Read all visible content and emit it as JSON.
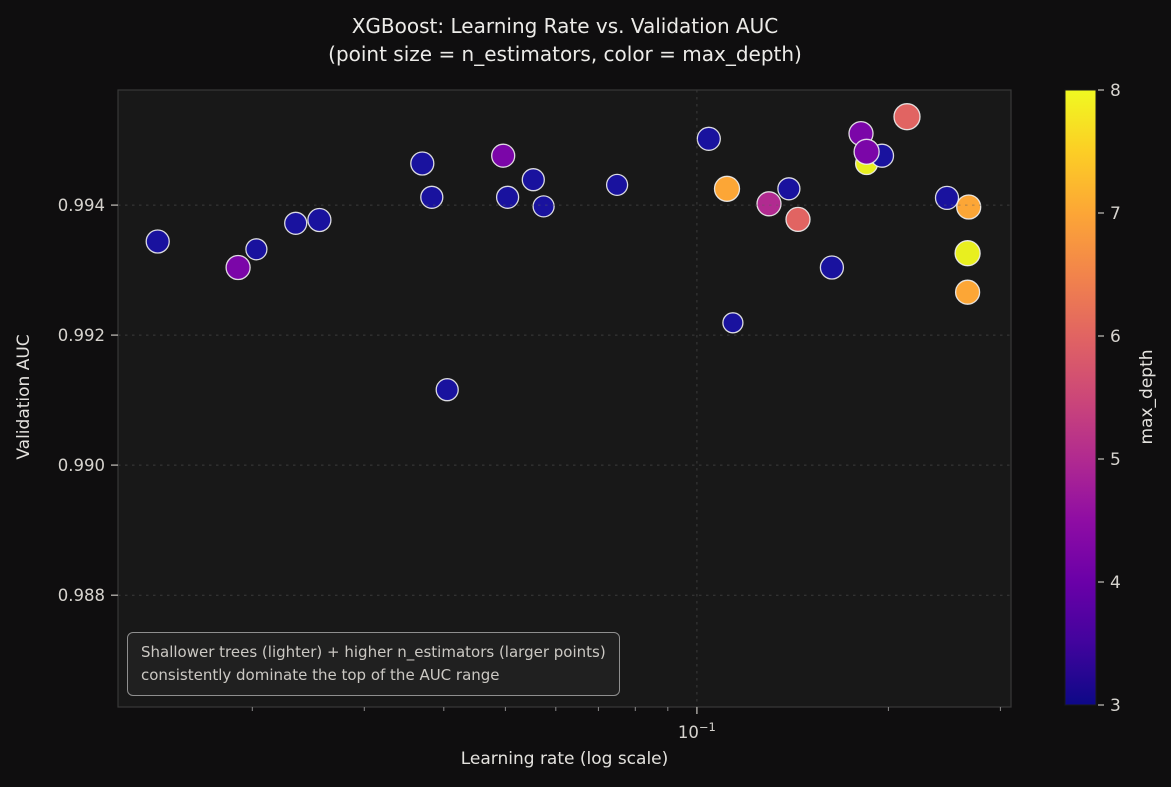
{
  "title": {
    "line1": "XGBoost: Learning Rate vs. Validation AUC",
    "line2": "(point size = n_estimators, color = max_depth)"
  },
  "colors": {
    "page_bg": "#0f0e0f",
    "plot_bg": "#181818",
    "grid": "#5e5e5e",
    "spine": "#383838",
    "title_text": "#ecebe8",
    "tick_text": "#d6d3ce",
    "minor_tick": "#8a8a8a",
    "major_tick": "#b8b5b0",
    "point_edge": "#f0f0f0",
    "annotation_text": "#cbc8c3",
    "annotation_border": "#8f8f8f"
  },
  "chart_data": {
    "type": "scatter",
    "title": "XGBoost: Learning Rate vs. Validation AUC",
    "subtitle": "(point size = n_estimators, color = max_depth)",
    "xlabel": "Learning rate (log scale)",
    "ylabel": "Validation AUC",
    "x_scale": "log",
    "grid": "dashed, y-major and x-major only",
    "legend_position": "colorbar-right",
    "xlim": [
      0.0123,
      0.3117
    ],
    "ylim": [
      0.98628,
      0.99577
    ],
    "x_ticks": [
      {
        "value": 0.1,
        "base": "10",
        "exp": "−1"
      }
    ],
    "x_minor_ticks": [
      0.02,
      0.03,
      0.04,
      0.05,
      0.06,
      0.07,
      0.08,
      0.09,
      0.2,
      0.3
    ],
    "y_ticks": [
      {
        "value": 0.988,
        "label": "0.988"
      },
      {
        "value": 0.99,
        "label": "0.990"
      },
      {
        "value": 0.992,
        "label": "0.992"
      },
      {
        "value": 0.994,
        "label": "0.994"
      }
    ],
    "colorbar": {
      "label": "max_depth",
      "min": 3,
      "max": 8,
      "ticks": [
        3,
        4,
        5,
        6,
        7,
        8
      ],
      "colormap": "plasma",
      "stops": [
        [
          0,
          "#0d0887"
        ],
        [
          0.1,
          "#41049d"
        ],
        [
          0.2,
          "#6a00a8"
        ],
        [
          0.3,
          "#8f0da4"
        ],
        [
          0.4,
          "#b12a90"
        ],
        [
          0.5,
          "#cc4778"
        ],
        [
          0.6,
          "#e16462"
        ],
        [
          0.7,
          "#f2844b"
        ],
        [
          0.8,
          "#fca636"
        ],
        [
          0.9,
          "#fcce25"
        ],
        [
          1,
          "#f0f921"
        ]
      ]
    },
    "depth_colors": {
      "3": "#19129e",
      "4": "#7b06a8",
      "5": "#b12a90",
      "6": "#e16462",
      "7": "#fca636",
      "8": "#e8ef1f"
    },
    "annotation": {
      "line1": "Shallower trees (lighter) + higher n_estimators (larger points)",
      "line2": "consistently dominate the top of the AUC range"
    },
    "size_encoding": "n_estimators (larger points = more estimators); r is marker radius in px read from the image",
    "points": [
      {
        "lr": 0.0142,
        "auc": 0.99344,
        "max_depth": 3,
        "r": 11.5
      },
      {
        "lr": 0.019,
        "auc": 0.99304,
        "max_depth": 4,
        "r": 12
      },
      {
        "lr": 0.0203,
        "auc": 0.99332,
        "max_depth": 3,
        "r": 10.5
      },
      {
        "lr": 0.0234,
        "auc": 0.99372,
        "max_depth": 3,
        "r": 11
      },
      {
        "lr": 0.0255,
        "auc": 0.99377,
        "max_depth": 3,
        "r": 11.5
      },
      {
        "lr": 0.037,
        "auc": 0.99464,
        "max_depth": 3,
        "r": 11.5
      },
      {
        "lr": 0.0383,
        "auc": 0.99412,
        "max_depth": 3,
        "r": 11
      },
      {
        "lr": 0.0405,
        "auc": 0.99116,
        "max_depth": 3,
        "r": 11
      },
      {
        "lr": 0.0496,
        "auc": 0.99476,
        "max_depth": 4,
        "r": 11.5
      },
      {
        "lr": 0.0504,
        "auc": 0.99412,
        "max_depth": 3,
        "r": 11
      },
      {
        "lr": 0.0553,
        "auc": 0.99439,
        "max_depth": 3,
        "r": 11
      },
      {
        "lr": 0.0574,
        "auc": 0.99398,
        "max_depth": 3,
        "r": 10.5
      },
      {
        "lr": 0.0749,
        "auc": 0.99431,
        "max_depth": 3,
        "r": 10.5
      },
      {
        "lr": 0.1044,
        "auc": 0.99502,
        "max_depth": 3,
        "r": 11.5
      },
      {
        "lr": 0.1139,
        "auc": 0.99219,
        "max_depth": 3,
        "r": 10
      },
      {
        "lr": 0.1115,
        "auc": 0.99425,
        "max_depth": 7,
        "r": 12.5
      },
      {
        "lr": 0.1298,
        "auc": 0.99402,
        "max_depth": 5,
        "r": 12
      },
      {
        "lr": 0.1395,
        "auc": 0.99425,
        "max_depth": 3,
        "r": 11
      },
      {
        "lr": 0.1442,
        "auc": 0.99378,
        "max_depth": 6,
        "r": 12
      },
      {
        "lr": 0.163,
        "auc": 0.99304,
        "max_depth": 3,
        "r": 11.5
      },
      {
        "lr": 0.1848,
        "auc": 0.99464,
        "max_depth": 8,
        "r": 11
      },
      {
        "lr": 0.1954,
        "auc": 0.99476,
        "max_depth": 3,
        "r": 11.5
      },
      {
        "lr": 0.1811,
        "auc": 0.9951,
        "max_depth": 4,
        "r": 12
      },
      {
        "lr": 0.1848,
        "auc": 0.99482,
        "max_depth": 4,
        "r": 12.5
      },
      {
        "lr": 0.2139,
        "auc": 0.99536,
        "max_depth": 6,
        "r": 13
      },
      {
        "lr": 0.2472,
        "auc": 0.99411,
        "max_depth": 3,
        "r": 11.5
      },
      {
        "lr": 0.2674,
        "auc": 0.99397,
        "max_depth": 7,
        "r": 12
      },
      {
        "lr": 0.2664,
        "auc": 0.99326,
        "max_depth": 8,
        "r": 12.5
      },
      {
        "lr": 0.2664,
        "auc": 0.99266,
        "max_depth": 7,
        "r": 12
      }
    ]
  }
}
